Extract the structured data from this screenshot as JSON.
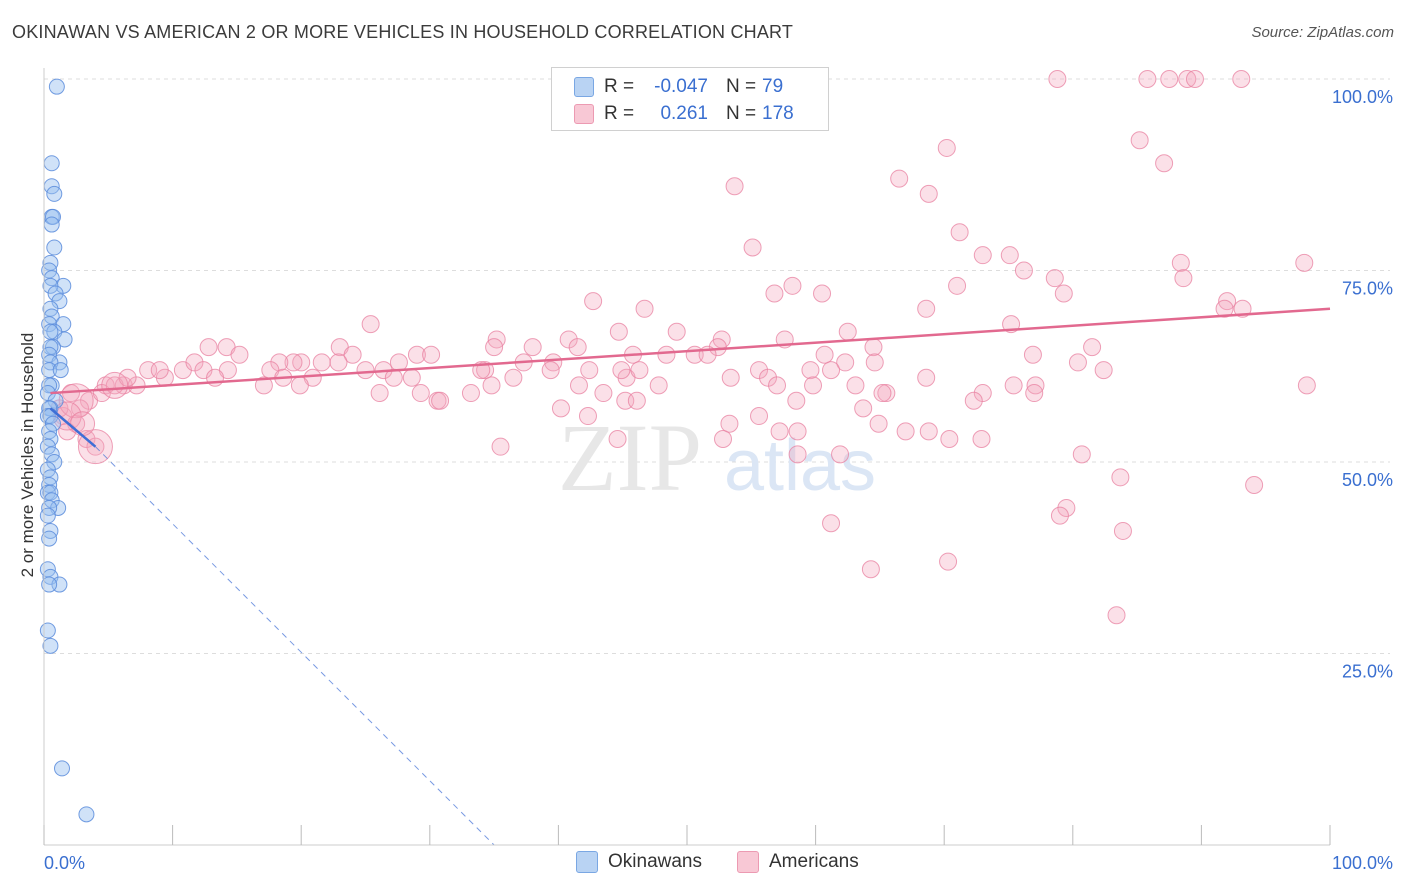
{
  "title": "OKINAWAN VS AMERICAN 2 OR MORE VEHICLES IN HOUSEHOLD CORRELATION CHART",
  "source": "Source: ZipAtlas.com",
  "watermark": {
    "zip": "ZIP",
    "atlas": "atlas"
  },
  "legend": {
    "rows": [
      {
        "r_label": "R =",
        "r_value": "-0.047",
        "n_label": "N =",
        "n_value": "79",
        "color": "#a8c8f0",
        "border": "#6fa0e0"
      },
      {
        "r_label": "R =",
        "r_value": "0.261",
        "n_label": "N =",
        "n_value": "178",
        "color": "#f5b9c8",
        "border": "#e88aa5"
      }
    ]
  },
  "bottom_legend": {
    "okinawans": "Okinawans",
    "americans": "Americans"
  },
  "chart_data": {
    "type": "scatter",
    "title": "OKINAWAN VS AMERICAN 2 OR MORE VEHICLES IN HOUSEHOLD CORRELATION CHART",
    "xlabel": "",
    "ylabel": "2 or more Vehicles in Household",
    "xlim": [
      0,
      100
    ],
    "ylim": [
      0,
      100
    ],
    "x_tick_labels": [
      "0.0%",
      "100.0%"
    ],
    "y_ticks": [
      25,
      50,
      75,
      100
    ],
    "y_tick_labels": [
      "25.0%",
      "50.0%",
      "75.0%",
      "100.0%"
    ],
    "colors": {
      "okinawans": "#6a9de0",
      "americans": "#ee8fab",
      "okinawans_line": "#3f6fd6",
      "americans_line": "#e2698f",
      "grid": "#dddddd",
      "tick_label": "#3a6fd0"
    },
    "series": [
      {
        "name": "Okinawans",
        "r": -0.047,
        "n": 79,
        "trend": {
          "x0": 0.5,
          "y0": 57,
          "x1": 4,
          "y1": 52
        },
        "trend_dashed": {
          "x0": 4,
          "y0": 52,
          "x1": 35,
          "y1": 0
        },
        "points": [
          [
            1,
            99
          ],
          [
            0.6,
            89
          ],
          [
            0.6,
            86
          ],
          [
            0.8,
            85
          ],
          [
            0.6,
            82
          ],
          [
            0.7,
            82
          ],
          [
            0.6,
            81
          ],
          [
            0.8,
            78
          ],
          [
            0.5,
            76
          ],
          [
            0.4,
            75
          ],
          [
            0.6,
            74
          ],
          [
            1.5,
            73
          ],
          [
            0.5,
            73
          ],
          [
            0.9,
            72
          ],
          [
            1.2,
            71
          ],
          [
            0.5,
            70
          ],
          [
            0.6,
            69
          ],
          [
            0.4,
            68
          ],
          [
            1.5,
            68
          ],
          [
            0.8,
            67
          ],
          [
            0.5,
            67
          ],
          [
            1.6,
            66
          ],
          [
            0.7,
            65
          ],
          [
            0.5,
            65
          ],
          [
            0.4,
            64
          ],
          [
            1.2,
            63
          ],
          [
            0.5,
            63
          ],
          [
            0.4,
            62
          ],
          [
            1.3,
            62
          ],
          [
            0.6,
            60
          ],
          [
            0.4,
            60
          ],
          [
            0.3,
            59
          ],
          [
            0.9,
            58
          ],
          [
            0.5,
            57
          ],
          [
            0.4,
            57
          ],
          [
            0.3,
            56
          ],
          [
            0.5,
            56
          ],
          [
            0.7,
            55
          ],
          [
            0.4,
            54
          ],
          [
            0.5,
            53
          ],
          [
            0.3,
            52
          ],
          [
            0.6,
            51
          ],
          [
            0.8,
            50
          ],
          [
            0.3,
            49
          ],
          [
            0.5,
            48
          ],
          [
            0.4,
            47
          ],
          [
            0.3,
            46
          ],
          [
            0.5,
            46
          ],
          [
            0.6,
            45
          ],
          [
            1.1,
            44
          ],
          [
            0.4,
            44
          ],
          [
            0.3,
            43
          ],
          [
            0.5,
            41
          ],
          [
            0.4,
            40
          ],
          [
            0.3,
            36
          ],
          [
            0.5,
            35
          ],
          [
            1.2,
            34
          ],
          [
            0.4,
            34
          ],
          [
            0.3,
            28
          ],
          [
            0.5,
            26
          ],
          [
            1.4,
            10
          ],
          [
            3.3,
            4
          ]
        ]
      },
      {
        "name": "Americans",
        "r": 0.261,
        "n": 178,
        "trend": {
          "x0": 0.5,
          "y0": 59,
          "x1": 100,
          "y1": 70
        },
        "points": [
          [
            78.8,
            100
          ],
          [
            87.5,
            100
          ],
          [
            88.9,
            100
          ],
          [
            89.5,
            100
          ],
          [
            93.1,
            100
          ],
          [
            85.8,
            100
          ],
          [
            70.2,
            91
          ],
          [
            85.2,
            92
          ],
          [
            87.1,
            89
          ],
          [
            66.5,
            87
          ],
          [
            53.7,
            86
          ],
          [
            68.8,
            85
          ],
          [
            71.2,
            80
          ],
          [
            55.1,
            78
          ],
          [
            73,
            77
          ],
          [
            75.1,
            77
          ],
          [
            88.4,
            76
          ],
          [
            98,
            76
          ],
          [
            76.2,
            75
          ],
          [
            78.6,
            74
          ],
          [
            88.6,
            74
          ],
          [
            58.2,
            73
          ],
          [
            71,
            73
          ],
          [
            60.5,
            72
          ],
          [
            56.8,
            72
          ],
          [
            79.3,
            72
          ],
          [
            42.7,
            71
          ],
          [
            46.7,
            70
          ],
          [
            92,
            71
          ],
          [
            68.6,
            70
          ],
          [
            91.8,
            70
          ],
          [
            93.2,
            70
          ],
          [
            75.2,
            68
          ],
          [
            25.4,
            68
          ],
          [
            44.7,
            67
          ],
          [
            49.2,
            67
          ],
          [
            62.5,
            67
          ],
          [
            57.6,
            66
          ],
          [
            35.2,
            66
          ],
          [
            40.8,
            66
          ],
          [
            12.8,
            65
          ],
          [
            14.2,
            65
          ],
          [
            23,
            65
          ],
          [
            29,
            64
          ],
          [
            35,
            65
          ],
          [
            38,
            65
          ],
          [
            41.5,
            65
          ],
          [
            52.7,
            66
          ],
          [
            64.5,
            65
          ],
          [
            76.9,
            64
          ],
          [
            81.5,
            65
          ],
          [
            30.1,
            64
          ],
          [
            52.4,
            65
          ],
          [
            15.2,
            64
          ],
          [
            24,
            64
          ],
          [
            20,
            63
          ],
          [
            27.6,
            63
          ],
          [
            26.4,
            62
          ],
          [
            34.3,
            62
          ],
          [
            37.3,
            63
          ],
          [
            39.6,
            63
          ],
          [
            45.8,
            64
          ],
          [
            48.4,
            64
          ],
          [
            50.6,
            64
          ],
          [
            51.6,
            64
          ],
          [
            60.7,
            64
          ],
          [
            62.3,
            63
          ],
          [
            21.6,
            63
          ],
          [
            22.9,
            63
          ],
          [
            19.4,
            63
          ],
          [
            18.3,
            63
          ],
          [
            10.8,
            62
          ],
          [
            11.7,
            63
          ],
          [
            12.4,
            62
          ],
          [
            14.3,
            62
          ],
          [
            17.6,
            62
          ],
          [
            25,
            62
          ],
          [
            34,
            62
          ],
          [
            39.4,
            62
          ],
          [
            42.4,
            62
          ],
          [
            45.3,
            61
          ],
          [
            46.3,
            62
          ],
          [
            55.6,
            62
          ],
          [
            53.4,
            61
          ],
          [
            59.6,
            62
          ],
          [
            61.2,
            62
          ],
          [
            64.6,
            63
          ],
          [
            80.4,
            63
          ],
          [
            6.2,
            60
          ],
          [
            7.2,
            60
          ],
          [
            9.4,
            61
          ],
          [
            13.3,
            61
          ],
          [
            18.6,
            61
          ],
          [
            20.9,
            61
          ],
          [
            27.2,
            61
          ],
          [
            28.6,
            61
          ],
          [
            34.8,
            60
          ],
          [
            36.5,
            61
          ],
          [
            41.6,
            60
          ],
          [
            43.5,
            59
          ],
          [
            47.8,
            60
          ],
          [
            44.9,
            62
          ],
          [
            56.3,
            61
          ],
          [
            57,
            60
          ],
          [
            59.8,
            60
          ],
          [
            68.6,
            61
          ],
          [
            75.4,
            60
          ],
          [
            77.1,
            60
          ],
          [
            98.2,
            60
          ],
          [
            2.1,
            59
          ],
          [
            3.5,
            58
          ],
          [
            4.8,
            60
          ],
          [
            17.1,
            60
          ],
          [
            29.3,
            59
          ],
          [
            33.2,
            59
          ],
          [
            26.1,
            59
          ],
          [
            19.9,
            60
          ],
          [
            30.6,
            58
          ],
          [
            30.8,
            58
          ],
          [
            40.2,
            57
          ],
          [
            45.2,
            58
          ],
          [
            58.5,
            58
          ],
          [
            63.7,
            57
          ],
          [
            65.5,
            59
          ],
          [
            73,
            59
          ],
          [
            72.3,
            58
          ],
          [
            77,
            59
          ],
          [
            82.4,
            62
          ],
          [
            63.1,
            60
          ],
          [
            65.2,
            59
          ],
          [
            46.1,
            58
          ],
          [
            42.3,
            56
          ],
          [
            53.3,
            55
          ],
          [
            55.6,
            56
          ],
          [
            52.8,
            53
          ],
          [
            57.2,
            54
          ],
          [
            58.6,
            54
          ],
          [
            70.4,
            53
          ],
          [
            72.9,
            53
          ],
          [
            67,
            54
          ],
          [
            68.8,
            54
          ],
          [
            64.9,
            55
          ],
          [
            61.9,
            51
          ],
          [
            58.6,
            51
          ],
          [
            35.5,
            52
          ],
          [
            44.6,
            53
          ],
          [
            1.5,
            56
          ],
          [
            2.5,
            55
          ],
          [
            3.3,
            53
          ],
          [
            4,
            52
          ],
          [
            1.8,
            54
          ],
          [
            1.2,
            57
          ],
          [
            2.8,
            57
          ],
          [
            4.5,
            59
          ],
          [
            5.5,
            60
          ],
          [
            6.5,
            61
          ],
          [
            8.1,
            62
          ],
          [
            9,
            62
          ],
          [
            80.7,
            51
          ],
          [
            83.7,
            48
          ],
          [
            79.5,
            44
          ],
          [
            79,
            43
          ],
          [
            83.9,
            41
          ],
          [
            94.1,
            47
          ],
          [
            70.3,
            37
          ],
          [
            64.3,
            36
          ],
          [
            61.2,
            42
          ],
          [
            83.4,
            30
          ]
        ]
      }
    ]
  }
}
